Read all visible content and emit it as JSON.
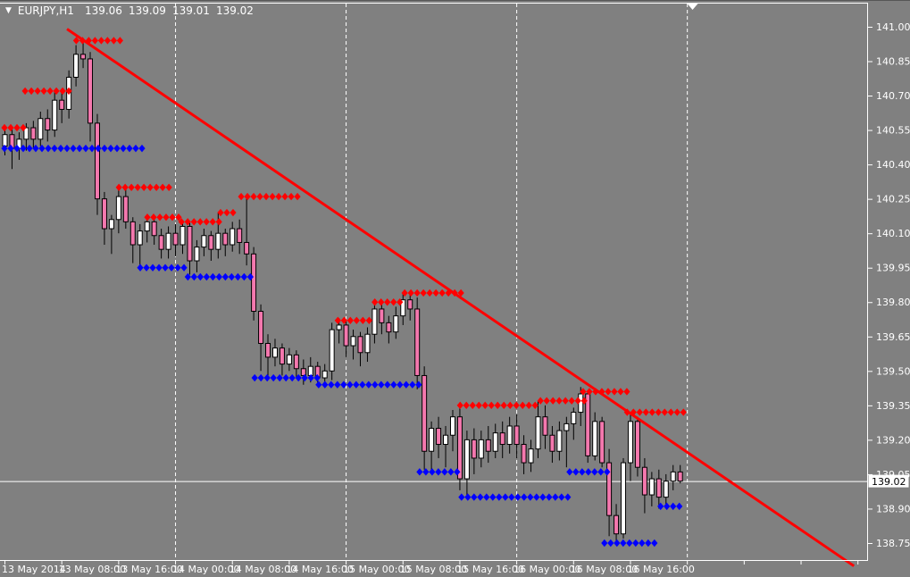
{
  "header": {
    "symbol": "EURJPY,H1",
    "open": "139.06",
    "high": "139.09",
    "low": "139.01",
    "close": "139.02"
  },
  "icons": {
    "symbol_dropdown": "▼",
    "end_of_data_marker": "down-triangle"
  },
  "colors": {
    "background": "#808080",
    "bull_candle": "#FFFFFF",
    "bear_candle": "#F478AE",
    "candle_outline": "#000000",
    "resistance_dot": "#FF0000",
    "support_dot": "#0000FF",
    "trendline": "#FF0000",
    "grid": "#FFFFFF",
    "axis_line": "#FFFFFF",
    "axis_text": "#FFFFFF",
    "bid_line": "#FFFFFF",
    "price_tag_bg": "#FFFFFF",
    "price_tag_text": "#000000",
    "header_text": "#FFFFFF"
  },
  "price_axis": {
    "labels": [
      "141.00",
      "140.85",
      "140.70",
      "140.55",
      "140.40",
      "140.25",
      "140.10",
      "139.95",
      "139.80",
      "139.65",
      "139.50",
      "139.35",
      "139.20",
      "139.05",
      "138.90",
      "138.75"
    ],
    "current_price_label": "139.02"
  },
  "time_axis": {
    "labels": [
      [
        0,
        "13 May 2014"
      ],
      [
        8,
        "13 May 08:00"
      ],
      [
        16,
        "13 May 16:00"
      ],
      [
        24,
        "14 May 00:00"
      ],
      [
        32,
        "14 May 08:00"
      ],
      [
        40,
        "14 May 16:00"
      ],
      [
        48,
        "15 May 00:00"
      ],
      [
        56,
        "15 May 08:00"
      ],
      [
        64,
        "15 May 16:00"
      ],
      [
        72,
        "16 May 00:00"
      ],
      [
        80,
        "16 May 08:00"
      ],
      [
        88,
        "16 May 16:00"
      ]
    ]
  },
  "chart_data": {
    "type": "candlestick",
    "symbol": "EURJPY",
    "timeframe": "H1",
    "title": "EURJPY,H1",
    "ylim": [
      138.676,
      141.105
    ],
    "current_price": 139.02,
    "grid_vertical_at_indices": [
      24,
      48,
      72,
      96
    ],
    "grid": "vertical-day-separators",
    "end_marker_index": 96.8,
    "trendline": {
      "from_index": 8.8,
      "from_price": 140.99,
      "to_index": 119.5,
      "to_price": 138.65
    },
    "candles": [
      [
        "13 May 00:00",
        140.48,
        140.57,
        140.44,
        140.53
      ],
      [
        "13 May 01:00",
        140.53,
        140.56,
        140.38,
        140.47
      ],
      [
        "13 May 02:00",
        140.47,
        140.54,
        140.42,
        140.51
      ],
      [
        "13 May 03:00",
        140.51,
        140.58,
        140.46,
        140.56
      ],
      [
        "13 May 04:00",
        140.56,
        140.59,
        140.47,
        140.51
      ],
      [
        "13 May 05:00",
        140.51,
        140.63,
        140.48,
        140.6
      ],
      [
        "13 May 06:00",
        140.6,
        140.64,
        140.5,
        140.55
      ],
      [
        "13 May 07:00",
        140.55,
        140.72,
        140.52,
        140.68
      ],
      [
        "13 May 08:00",
        140.68,
        140.73,
        140.58,
        140.64
      ],
      [
        "13 May 09:00",
        140.64,
        140.81,
        140.6,
        140.78
      ],
      [
        "13 May 10:00",
        140.78,
        140.92,
        140.74,
        140.88
      ],
      [
        "13 May 11:00",
        140.88,
        140.95,
        140.82,
        140.86
      ],
      [
        "13 May 12:00",
        140.86,
        140.89,
        140.5,
        140.58
      ],
      [
        "13 May 13:00",
        140.58,
        140.62,
        140.18,
        140.25
      ],
      [
        "13 May 14:00",
        140.25,
        140.28,
        140.05,
        140.12
      ],
      [
        "13 May 15:00",
        140.12,
        140.18,
        140.01,
        140.16
      ],
      [
        "13 May 16:00",
        140.16,
        140.3,
        140.1,
        140.26
      ],
      [
        "13 May 17:00",
        140.26,
        140.3,
        140.12,
        140.15
      ],
      [
        "13 May 18:00",
        140.15,
        140.17,
        139.97,
        140.05
      ],
      [
        "13 May 19:00",
        140.05,
        140.14,
        139.96,
        140.11
      ],
      [
        "13 May 20:00",
        140.11,
        140.17,
        140.06,
        140.15
      ],
      [
        "13 May 21:00",
        140.15,
        140.17,
        140.05,
        140.09
      ],
      [
        "13 May 22:00",
        140.09,
        140.12,
        139.99,
        140.03
      ],
      [
        "13 May 23:00",
        140.03,
        140.13,
        139.99,
        140.1
      ],
      [
        "14 May 00:00",
        140.1,
        140.14,
        140.0,
        140.05
      ],
      [
        "14 May 01:00",
        140.05,
        140.15,
        140.01,
        140.13
      ],
      [
        "14 May 02:00",
        140.13,
        140.15,
        139.92,
        139.98
      ],
      [
        "14 May 03:00",
        139.98,
        140.07,
        139.93,
        140.04
      ],
      [
        "14 May 04:00",
        140.04,
        140.12,
        140.0,
        140.09
      ],
      [
        "14 May 05:00",
        140.09,
        140.11,
        139.98,
        140.03
      ],
      [
        "14 May 06:00",
        140.03,
        140.19,
        139.99,
        140.1
      ],
      [
        "14 May 07:00",
        140.1,
        140.12,
        140.0,
        140.05
      ],
      [
        "14 May 08:00",
        140.05,
        140.15,
        140.02,
        140.12
      ],
      [
        "14 May 09:00",
        140.12,
        140.16,
        140.01,
        140.06
      ],
      [
        "14 May 10:00",
        140.06,
        140.26,
        139.96,
        140.01
      ],
      [
        "14 May 11:00",
        140.01,
        140.04,
        139.72,
        139.76
      ],
      [
        "14 May 12:00",
        139.76,
        139.79,
        139.5,
        139.62
      ],
      [
        "14 May 13:00",
        139.62,
        139.66,
        139.47,
        139.56
      ],
      [
        "14 May 14:00",
        139.56,
        139.64,
        139.52,
        139.6
      ],
      [
        "14 May 15:00",
        139.6,
        139.62,
        139.48,
        139.53
      ],
      [
        "14 May 16:00",
        139.53,
        139.6,
        139.5,
        139.57
      ],
      [
        "14 May 17:00",
        139.57,
        139.59,
        139.47,
        139.51
      ],
      [
        "14 May 18:00",
        139.51,
        139.55,
        139.44,
        139.48
      ],
      [
        "14 May 19:00",
        139.48,
        139.56,
        139.45,
        139.52
      ],
      [
        "14 May 20:00",
        139.52,
        139.54,
        139.44,
        139.47
      ],
      [
        "14 May 21:00",
        139.47,
        139.53,
        139.43,
        139.5
      ],
      [
        "14 May 22:00",
        139.5,
        139.71,
        139.46,
        139.68
      ],
      [
        "14 May 23:00",
        139.68,
        139.73,
        139.62,
        139.7
      ],
      [
        "15 May 00:00",
        139.7,
        139.72,
        139.56,
        139.61
      ],
      [
        "15 May 01:00",
        139.61,
        139.68,
        139.55,
        139.65
      ],
      [
        "15 May 02:00",
        139.65,
        139.67,
        139.52,
        139.58
      ],
      [
        "15 May 03:00",
        139.58,
        139.69,
        139.54,
        139.66
      ],
      [
        "15 May 04:00",
        139.66,
        139.8,
        139.62,
        139.77
      ],
      [
        "15 May 05:00",
        139.77,
        139.8,
        139.66,
        139.71
      ],
      [
        "15 May 06:00",
        139.71,
        139.74,
        139.62,
        139.67
      ],
      [
        "15 May 07:00",
        139.67,
        139.78,
        139.64,
        139.74
      ],
      [
        "15 May 08:00",
        139.74,
        139.84,
        139.7,
        139.81
      ],
      [
        "15 May 09:00",
        139.81,
        139.84,
        139.72,
        139.77
      ],
      [
        "15 May 10:00",
        139.77,
        139.82,
        139.42,
        139.48
      ],
      [
        "15 May 11:00",
        139.48,
        139.52,
        139.07,
        139.15
      ],
      [
        "15 May 12:00",
        139.15,
        139.28,
        139.05,
        139.25
      ],
      [
        "15 May 13:00",
        139.25,
        139.3,
        139.12,
        139.18
      ],
      [
        "15 May 14:00",
        139.18,
        139.26,
        139.08,
        139.22
      ],
      [
        "15 May 15:00",
        139.22,
        139.33,
        139.15,
        139.3
      ],
      [
        "15 May 16:00",
        139.3,
        139.35,
        138.98,
        139.03
      ],
      [
        "15 May 17:00",
        139.03,
        139.24,
        138.96,
        139.2
      ],
      [
        "15 May 18:00",
        139.2,
        139.25,
        139.05,
        139.12
      ],
      [
        "15 May 19:00",
        139.12,
        139.24,
        139.08,
        139.2
      ],
      [
        "15 May 20:00",
        139.2,
        139.26,
        139.1,
        139.15
      ],
      [
        "15 May 21:00",
        139.15,
        139.27,
        139.12,
        139.23
      ],
      [
        "15 May 22:00",
        139.23,
        139.28,
        139.12,
        139.18
      ],
      [
        "15 May 23:00",
        139.18,
        139.3,
        139.14,
        139.26
      ],
      [
        "16 May 00:00",
        139.26,
        139.31,
        139.12,
        139.18
      ],
      [
        "16 May 01:00",
        139.18,
        139.22,
        139.05,
        139.1
      ],
      [
        "16 May 02:00",
        139.1,
        139.2,
        139.06,
        139.16
      ],
      [
        "16 May 03:00",
        139.16,
        139.37,
        139.12,
        139.3
      ],
      [
        "16 May 04:00",
        139.3,
        139.35,
        139.16,
        139.22
      ],
      [
        "16 May 05:00",
        139.22,
        139.26,
        139.1,
        139.15
      ],
      [
        "16 May 06:00",
        139.15,
        139.28,
        139.11,
        139.24
      ],
      [
        "16 May 07:00",
        139.24,
        139.3,
        139.08,
        139.27
      ],
      [
        "16 May 08:00",
        139.27,
        139.34,
        139.2,
        139.32
      ],
      [
        "16 May 09:00",
        139.32,
        139.43,
        139.26,
        139.4
      ],
      [
        "16 May 10:00",
        139.4,
        139.41,
        139.1,
        139.13
      ],
      [
        "16 May 11:00",
        139.13,
        139.32,
        139.11,
        139.28
      ],
      [
        "16 May 12:00",
        139.28,
        139.3,
        139.08,
        139.1
      ],
      [
        "16 May 13:00",
        139.1,
        139.16,
        138.78,
        138.87
      ],
      [
        "16 May 14:00",
        138.87,
        138.92,
        138.75,
        138.79
      ],
      [
        "16 May 15:00",
        138.79,
        139.12,
        138.77,
        139.1
      ],
      [
        "16 May 16:00",
        139.1,
        139.32,
        139.02,
        139.28
      ],
      [
        "16 May 17:00",
        139.28,
        139.3,
        139.04,
        139.08
      ],
      [
        "16 May 18:00",
        139.08,
        139.12,
        138.88,
        138.96
      ],
      [
        "16 May 19:00",
        138.96,
        139.06,
        138.91,
        139.03
      ],
      [
        "16 May 20:00",
        139.03,
        139.07,
        138.9,
        138.95
      ],
      [
        "16 May 21:00",
        138.95,
        139.05,
        138.9,
        139.02
      ],
      [
        "16 May 22:00",
        139.02,
        139.09,
        138.98,
        139.06
      ],
      [
        "16 May 23:00",
        139.06,
        139.09,
        139.01,
        139.02
      ]
    ],
    "resistance_levels": [
      {
        "price": 140.56,
        "from": 0,
        "to": 2.9
      },
      {
        "price": 140.72,
        "from": 2.9,
        "to": 9.8
      },
      {
        "price": 140.94,
        "from": 10.1,
        "to": 16.3
      },
      {
        "price": 140.3,
        "from": 16.1,
        "to": 23.2
      },
      {
        "price": 140.17,
        "from": 20.1,
        "to": 24.9
      },
      {
        "price": 140.15,
        "from": 24.9,
        "to": 30.4
      },
      {
        "price": 140.19,
        "from": 30.4,
        "to": 33.0
      },
      {
        "price": 140.26,
        "from": 33.3,
        "to": 41.5
      },
      {
        "price": 139.72,
        "from": 46.9,
        "to": 52.1
      },
      {
        "price": 139.8,
        "from": 52.1,
        "to": 56.3
      },
      {
        "price": 139.84,
        "from": 56.3,
        "to": 64.3
      },
      {
        "price": 139.35,
        "from": 64.1,
        "to": 75.4
      },
      {
        "price": 139.37,
        "from": 75.4,
        "to": 81.7
      },
      {
        "price": 139.41,
        "from": 81.4,
        "to": 87.6
      },
      {
        "price": 139.32,
        "from": 87.6,
        "to": 95.7
      }
    ],
    "support_levels": [
      {
        "price": 140.47,
        "from": 0,
        "to": 19.8
      },
      {
        "price": 139.95,
        "from": 19.1,
        "to": 25.8
      },
      {
        "price": 139.91,
        "from": 25.8,
        "to": 34.9
      },
      {
        "price": 139.47,
        "from": 35.2,
        "to": 44.2
      },
      {
        "price": 139.44,
        "from": 44.2,
        "to": 58.4
      },
      {
        "price": 139.06,
        "from": 58.4,
        "to": 64.3
      },
      {
        "price": 138.95,
        "from": 64.3,
        "to": 79.4
      },
      {
        "price": 139.06,
        "from": 79.5,
        "to": 84.8
      },
      {
        "price": 138.75,
        "from": 84.4,
        "to": 92.3
      },
      {
        "price": 138.91,
        "from": 92.3,
        "to": 95.2
      }
    ]
  }
}
